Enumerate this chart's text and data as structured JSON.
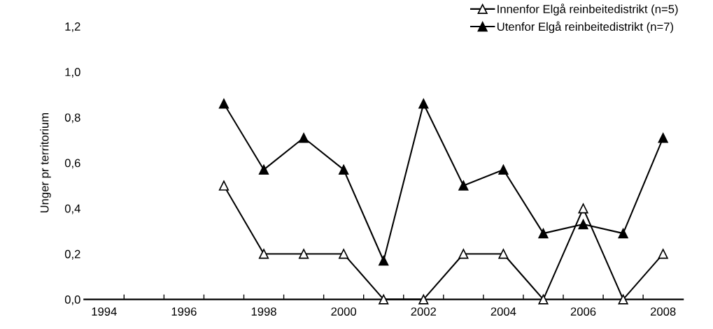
{
  "chart_data": {
    "type": "line",
    "ylabel": "Unger pr territorium",
    "categories": [
      "1994",
      null,
      "1996",
      null,
      "1998",
      null,
      "2000",
      null,
      "2002",
      null,
      "2004",
      null,
      "2006",
      null,
      "2008"
    ],
    "series": [
      {
        "name": "Innenfor Elgå reinbeitedistrikt (n=5)",
        "color": "#ffffff",
        "values": [
          null,
          null,
          null,
          0.5,
          0.2,
          0.2,
          0.2,
          0,
          0,
          0.2,
          0.2,
          0,
          0.4,
          0,
          0.2
        ]
      },
      {
        "name": "Utenfor Elgå reinbeitedistrikt (n=7)",
        "color": "#000000",
        "values": [
          null,
          null,
          null,
          0.86,
          0.57,
          0.71,
          0.57,
          0.17,
          0.86,
          0.5,
          0.57,
          0.29,
          0.33,
          0.29,
          0.71
        ]
      }
    ],
    "ylim": [
      0,
      1.2
    ],
    "yticks": [
      {
        "value": 0,
        "label": "0,0"
      },
      {
        "value": 0.2,
        "label": "0,2"
      },
      {
        "value": 0.4,
        "label": "0,4"
      },
      {
        "value": 0.6,
        "label": "0,6"
      },
      {
        "value": 0.8,
        "label": "0,8"
      },
      {
        "value": 1.0,
        "label": "1,0"
      },
      {
        "value": 1.2,
        "label": "1,2"
      }
    ],
    "grid": false,
    "legend": "top right",
    "marker": "triangle",
    "line_style": "solid"
  }
}
